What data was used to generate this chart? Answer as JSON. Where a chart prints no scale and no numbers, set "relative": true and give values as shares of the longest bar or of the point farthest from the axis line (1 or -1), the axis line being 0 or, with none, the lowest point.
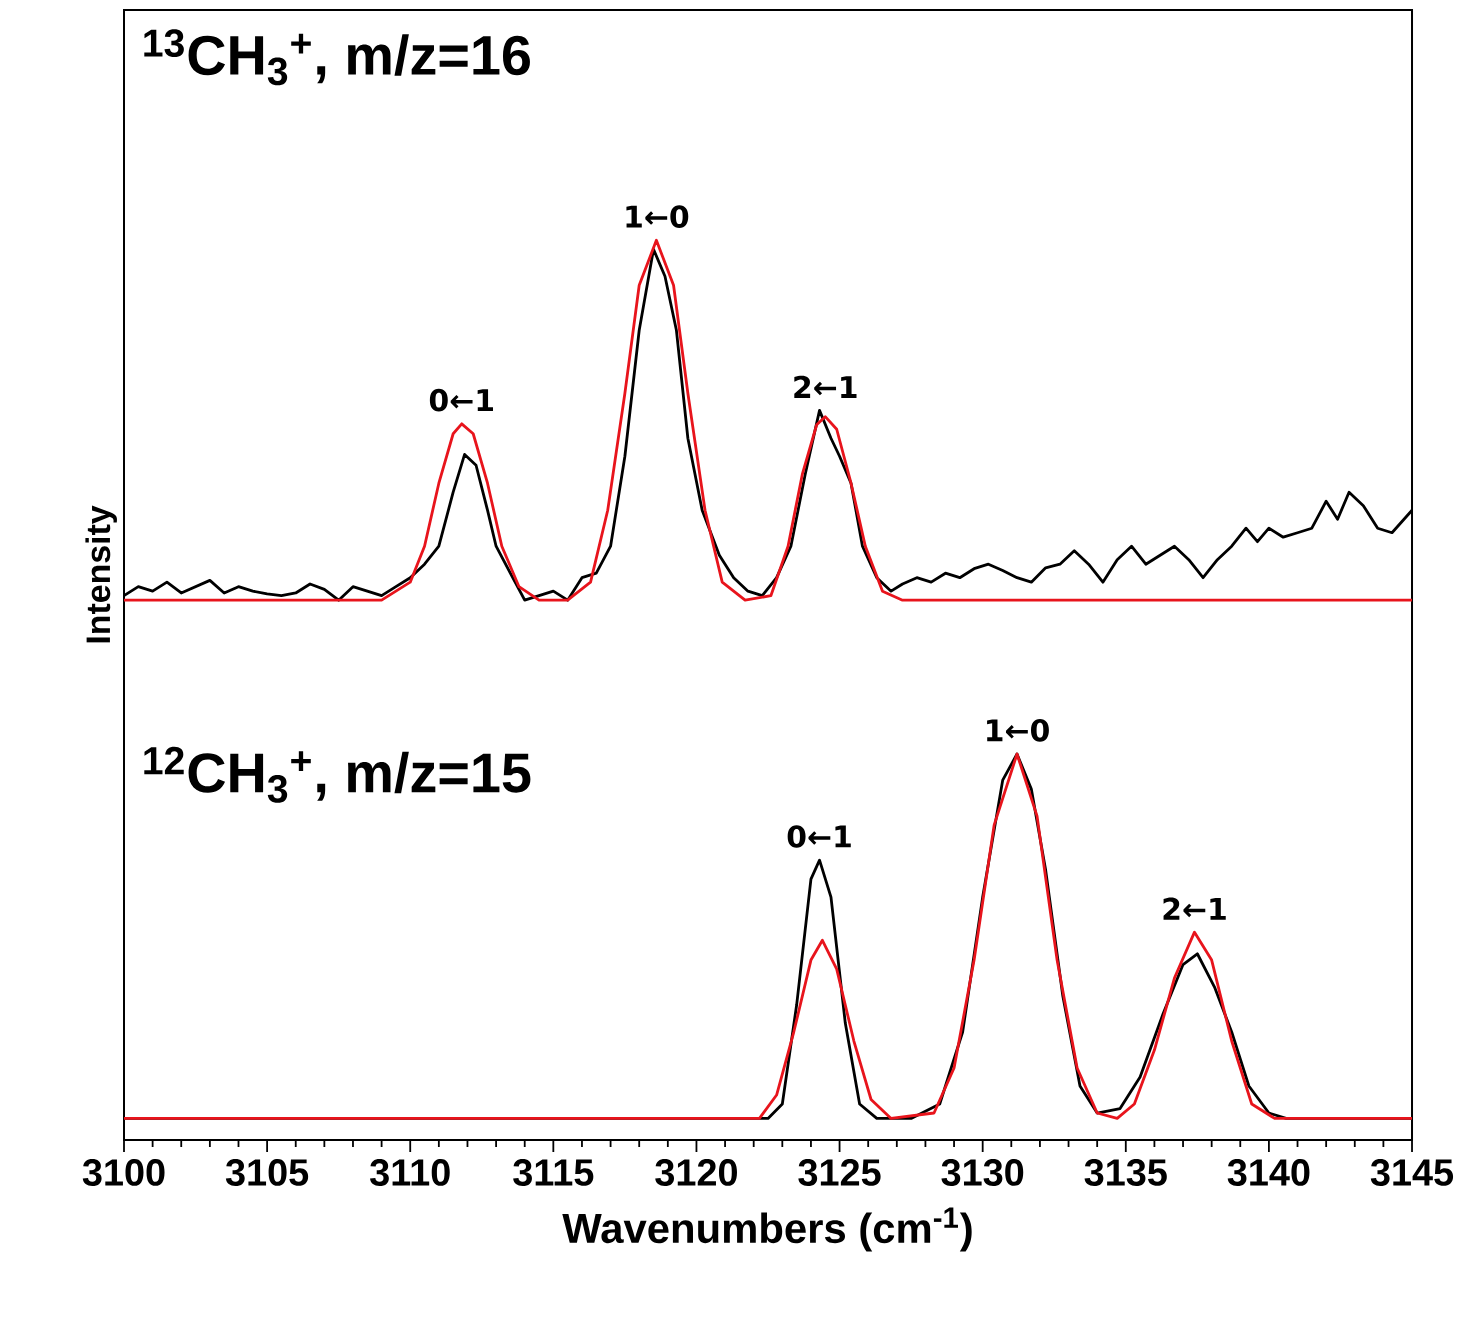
{
  "chart_data": {
    "type": "line",
    "relative": true,
    "xlabel": "Wavenumbers (cm$^{-1}$)",
    "ylabel": "Intensity",
    "xlim": [
      3100,
      3145
    ],
    "xticks": [
      3100,
      3105,
      3110,
      3115,
      3120,
      3125,
      3130,
      3135,
      3140,
      3145
    ],
    "annotations": [
      "$^{13}$CH$_{3}$$^{+}$, m/z=16",
      "$^{12}$CH$_{3}$$^{+}$, m/z=15",
      {
        "text": "0←1",
        "x": 3111.8,
        "y": 0.796
      },
      {
        "text": "1←0",
        "x": 3118.6,
        "y": 1.0
      },
      {
        "text": "2←1",
        "x": 3124.5,
        "y": 0.811
      },
      {
        "text": "0←1",
        "x": 3124.3,
        "y": 0.311
      },
      {
        "text": "1←0",
        "x": 3131.2,
        "y": 0.429
      },
      {
        "text": "2←1",
        "x": 3137.4,
        "y": 0.231
      }
    ],
    "series": [
      {
        "color": "#000000",
        "x": [
          3100,
          3100.5,
          3101,
          3101.5,
          3102,
          3102.5,
          3103,
          3103.5,
          3104,
          3104.5,
          3105,
          3105.5,
          3106,
          3106.5,
          3107,
          3107.5,
          3108,
          3108.5,
          3109,
          3109.5,
          3110,
          3110.5,
          3111,
          3111.5,
          3111.9,
          3112.3,
          3112.7,
          3113,
          3113.5,
          3114,
          3114.5,
          3115,
          3115.5,
          3116,
          3116.5,
          3117,
          3117.5,
          3118,
          3118.5,
          3118.9,
          3119.3,
          3119.7,
          3120.2,
          3120.8,
          3121.3,
          3121.8,
          3122.3,
          3122.8,
          3123.3,
          3123.8,
          3124.3,
          3124.7,
          3125,
          3125.4,
          3125.8,
          3126.3,
          3126.8,
          3127.2,
          3127.7,
          3128.2,
          3128.7,
          3129.2,
          3129.7,
          3130.2,
          3130.7,
          3131.2,
          3131.7,
          3132.2,
          3132.7,
          3133.2,
          3133.7,
          3134.2,
          3134.7,
          3135.2,
          3135.7,
          3136.2,
          3136.7,
          3137.2,
          3137.7,
          3138.2,
          3138.7,
          3139.2,
          3139.6,
          3140,
          3140.5,
          3141,
          3141.5,
          3142,
          3142.4,
          3142.8,
          3143.3,
          3143.8,
          3144.3,
          3145
        ],
        "values": [
          0.605,
          0.615,
          0.61,
          0.62,
          0.608,
          0.615,
          0.622,
          0.608,
          0.615,
          0.61,
          0.607,
          0.605,
          0.608,
          0.618,
          0.612,
          0.6,
          0.615,
          0.61,
          0.605,
          0.615,
          0.625,
          0.64,
          0.66,
          0.72,
          0.762,
          0.75,
          0.7,
          0.66,
          0.63,
          0.6,
          0.605,
          0.61,
          0.6,
          0.625,
          0.63,
          0.66,
          0.76,
          0.9,
          0.99,
          0.96,
          0.9,
          0.78,
          0.7,
          0.65,
          0.625,
          0.61,
          0.605,
          0.625,
          0.66,
          0.74,
          0.811,
          0.78,
          0.76,
          0.73,
          0.66,
          0.625,
          0.61,
          0.618,
          0.625,
          0.62,
          0.63,
          0.625,
          0.635,
          0.64,
          0.633,
          0.625,
          0.62,
          0.636,
          0.64,
          0.655,
          0.64,
          0.62,
          0.645,
          0.66,
          0.64,
          0.65,
          0.66,
          0.645,
          0.625,
          0.645,
          0.66,
          0.68,
          0.665,
          0.68,
          0.67,
          0.675,
          0.68,
          0.71,
          0.69,
          0.72,
          0.705,
          0.68,
          0.675,
          0.7
        ]
      },
      {
        "color": "#e8141c",
        "x": [
          3100,
          3109,
          3110,
          3110.5,
          3111,
          3111.5,
          3111.8,
          3112.2,
          3112.7,
          3113.2,
          3113.8,
          3114.5,
          3115.5,
          3116.3,
          3116.9,
          3117.5,
          3118,
          3118.6,
          3119.2,
          3119.7,
          3120.3,
          3120.9,
          3121.7,
          3122.6,
          3123.2,
          3123.7,
          3124.2,
          3124.5,
          3124.9,
          3125.4,
          3125.9,
          3126.5,
          3127.2,
          3145
        ],
        "values": [
          0.6,
          0.6,
          0.62,
          0.66,
          0.73,
          0.785,
          0.796,
          0.785,
          0.73,
          0.66,
          0.615,
          0.6,
          0.6,
          0.62,
          0.7,
          0.83,
          0.95,
          1.0,
          0.95,
          0.83,
          0.7,
          0.62,
          0.6,
          0.605,
          0.66,
          0.74,
          0.795,
          0.804,
          0.79,
          0.73,
          0.66,
          0.61,
          0.6,
          0.6
        ]
      },
      {
        "color": "#000000",
        "x": [
          3100,
          3122.5,
          3123,
          3123.5,
          3124,
          3124.3,
          3124.7,
          3125.2,
          3125.7,
          3126.3,
          3127.5,
          3128.5,
          3129.3,
          3130,
          3130.7,
          3131.2,
          3131.7,
          3132.2,
          3132.8,
          3133.4,
          3134,
          3134.8,
          3135.5,
          3136.3,
          3137,
          3137.5,
          3138.1,
          3138.7,
          3139.3,
          3140,
          3140.6,
          3145
        ],
        "values": [
          0.024,
          0.024,
          0.04,
          0.15,
          0.29,
          0.311,
          0.27,
          0.13,
          0.04,
          0.024,
          0.024,
          0.04,
          0.12,
          0.27,
          0.4,
          0.429,
          0.39,
          0.3,
          0.16,
          0.06,
          0.03,
          0.035,
          0.07,
          0.14,
          0.195,
          0.207,
          0.17,
          0.12,
          0.06,
          0.03,
          0.024,
          0.024
        ]
      },
      {
        "color": "#e8141c",
        "x": [
          3100,
          3122.2,
          3122.8,
          3123.4,
          3124,
          3124.4,
          3124.9,
          3125.5,
          3126.1,
          3126.8,
          3128.3,
          3129,
          3129.7,
          3130.4,
          3131.2,
          3131.9,
          3132.6,
          3133.3,
          3134,
          3134.7,
          3135.3,
          3136,
          3136.7,
          3137.4,
          3138,
          3138.7,
          3139.4,
          3140.2,
          3145
        ],
        "values": [
          0.024,
          0.024,
          0.05,
          0.12,
          0.2,
          0.222,
          0.19,
          0.11,
          0.045,
          0.024,
          0.03,
          0.08,
          0.2,
          0.35,
          0.429,
          0.36,
          0.2,
          0.08,
          0.03,
          0.024,
          0.04,
          0.1,
          0.18,
          0.231,
          0.2,
          0.11,
          0.04,
          0.024,
          0.024
        ]
      }
    ]
  }
}
